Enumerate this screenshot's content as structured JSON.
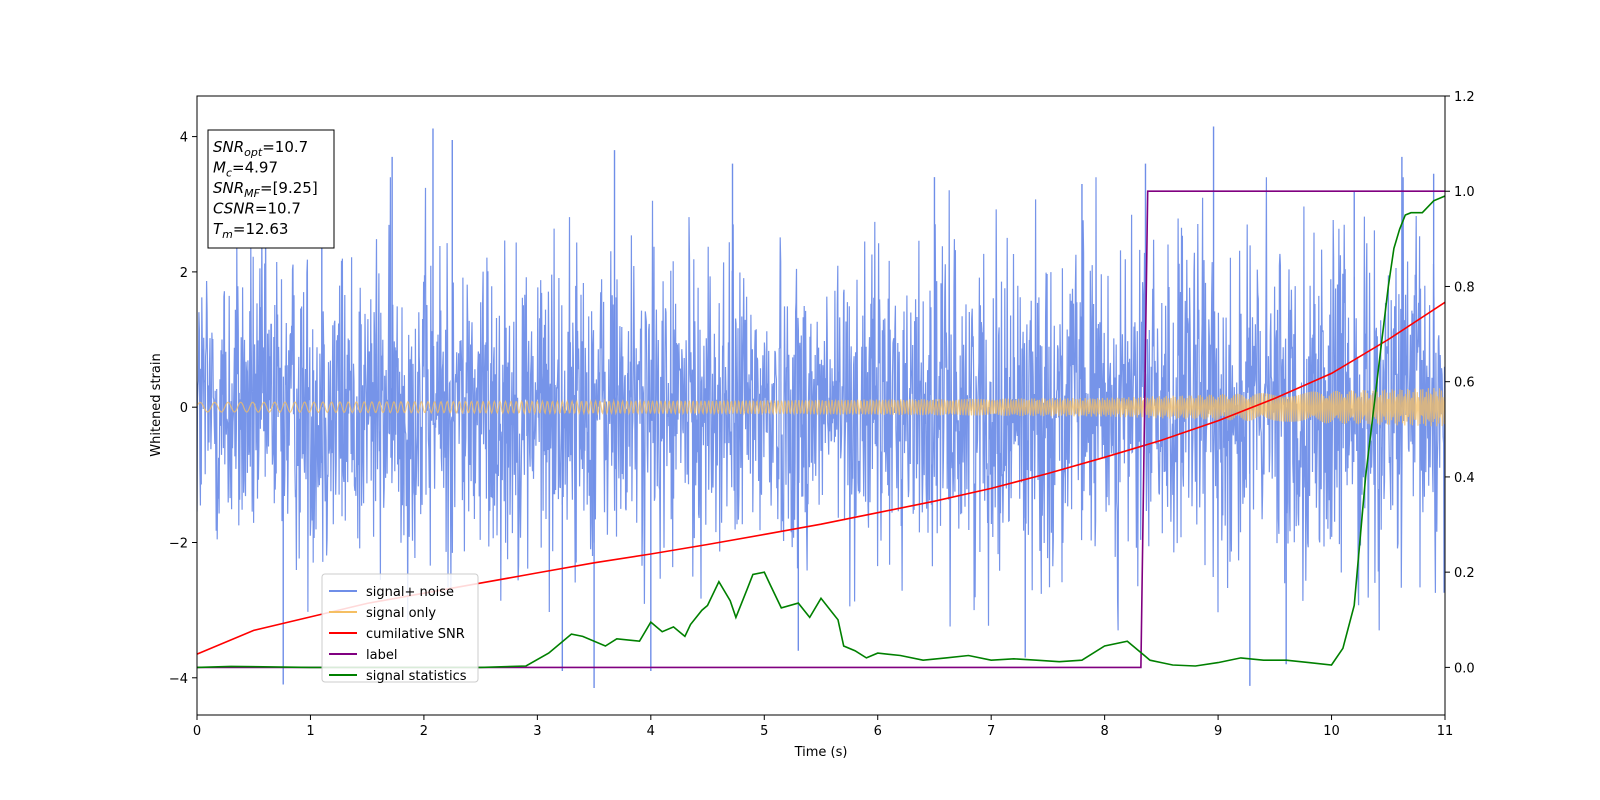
{
  "chart_data": {
    "type": "line",
    "xlabel": "Time (s)",
    "ylabel": "Whitened strain",
    "xlim": [
      0,
      11
    ],
    "ylim_left": [
      -4.55,
      4.6
    ],
    "ylim_right": [
      -0.1,
      1.2
    ],
    "x_ticks": [
      0,
      1,
      2,
      3,
      4,
      5,
      6,
      7,
      8,
      9,
      10,
      11
    ],
    "y_left_ticks": [
      4,
      2,
      0,
      -2,
      -4
    ],
    "y_left_tick_labels": [
      "4",
      "2",
      "0",
      "−2",
      "−4"
    ],
    "y_right_ticks": [
      1.2,
      1.0,
      0.8,
      0.6,
      0.4,
      0.2,
      0.0
    ],
    "y_right_tick_labels": [
      "1.2",
      "1.0",
      "0.8",
      "0.6",
      "0.4",
      "0.2",
      "0.0"
    ],
    "grid": false,
    "legend_position": "lower-left",
    "annotation": {
      "lines": [
        {
          "base": "SNR",
          "sub": "opt",
          "value": "=10.7"
        },
        {
          "base": "M",
          "sub": "c",
          "value": "=4.97"
        },
        {
          "base": "SNR",
          "sub": "MF",
          "value": "=[9.25]"
        },
        {
          "base": "CSNR",
          "sub": "",
          "value": "=10.7"
        },
        {
          "base": "T",
          "sub": "m",
          "value": "=12.63"
        }
      ]
    },
    "series": [
      {
        "name": "signal+ noise",
        "axis": "left",
        "color": "#6f8ee8",
        "kind": "noise",
        "envelope": [
          [
            0,
            2.1
          ],
          [
            2,
            2.2
          ],
          [
            5,
            2.0
          ],
          [
            8,
            2.2
          ],
          [
            11,
            2.4
          ]
        ],
        "spikes": [
          {
            "x": 0.76,
            "y": -4.1
          },
          {
            "x": 2.08,
            "y": 4.12
          },
          {
            "x": 2.25,
            "y": 3.95
          },
          {
            "x": 1.72,
            "y": 3.7
          },
          {
            "x": 3.5,
            "y": -4.15
          },
          {
            "x": 3.22,
            "y": -3.9
          },
          {
            "x": 3.68,
            "y": 3.8
          },
          {
            "x": 4.72,
            "y": 3.6
          },
          {
            "x": 8.36,
            "y": 3.6
          },
          {
            "x": 8.96,
            "y": 4.15
          },
          {
            "x": 9.28,
            "y": -4.12
          },
          {
            "x": 10.62,
            "y": 3.7
          },
          {
            "x": 10.9,
            "y": 3.45
          },
          {
            "x": 4.0,
            "y": -3.9
          },
          {
            "x": 6.5,
            "y": 3.4
          },
          {
            "x": 7.3,
            "y": -3.7
          },
          {
            "x": 7.8,
            "y": 3.3
          },
          {
            "x": 9.6,
            "y": -3.8
          },
          {
            "x": 1.1,
            "y": 3.3
          },
          {
            "x": 5.3,
            "y": -3.6
          },
          {
            "x": 10.2,
            "y": 3.2
          }
        ]
      },
      {
        "name": "signal only",
        "axis": "left",
        "color": "#f5bf63",
        "kind": "chirp",
        "amplitude": [
          [
            0,
            0.07
          ],
          [
            5,
            0.1
          ],
          [
            8,
            0.14
          ],
          [
            11,
            0.29
          ]
        ]
      },
      {
        "name": "cumilative SNR",
        "axis": "left",
        "color": "#ff0000",
        "x": [
          0,
          0.5,
          1,
          1.5,
          2,
          2.5,
          3,
          3.5,
          4,
          4.5,
          5,
          5.5,
          6,
          6.5,
          7,
          7.5,
          8,
          8.5,
          9,
          9.5,
          10,
          10.5,
          11
        ],
        "y": [
          -3.65,
          -3.3,
          -3.1,
          -2.9,
          -2.75,
          -2.6,
          -2.45,
          -2.3,
          -2.17,
          -2.03,
          -1.88,
          -1.73,
          -1.56,
          -1.39,
          -1.2,
          -0.98,
          -0.74,
          -0.49,
          -0.2,
          0.13,
          0.5,
          1.0,
          1.55
        ]
      },
      {
        "name": "label",
        "axis": "right",
        "color": "#800080",
        "x": [
          0,
          8.32,
          8.38,
          11
        ],
        "y": [
          0.0,
          0.0,
          1.0,
          1.0
        ]
      },
      {
        "name": "signal statistics",
        "axis": "right",
        "color": "#008000",
        "x": [
          0,
          0.3,
          1,
          2,
          2.5,
          2.9,
          3.1,
          3.3,
          3.4,
          3.6,
          3.7,
          3.9,
          4.0,
          4.1,
          4.2,
          4.3,
          4.35,
          4.45,
          4.5,
          4.6,
          4.7,
          4.75,
          4.85,
          4.9,
          5.0,
          5.05,
          5.15,
          5.3,
          5.4,
          5.5,
          5.6,
          5.65,
          5.7,
          5.8,
          5.9,
          6.0,
          6.2,
          6.4,
          6.6,
          6.8,
          7.0,
          7.2,
          7.4,
          7.6,
          7.8,
          8.0,
          8.2,
          8.3,
          8.4,
          8.5,
          8.6,
          8.8,
          9.0,
          9.2,
          9.4,
          9.6,
          9.8,
          10.0,
          10.1,
          10.2,
          10.3,
          10.4,
          10.5,
          10.55,
          10.6,
          10.65,
          10.7,
          10.8,
          10.9,
          11.0
        ],
        "y": [
          0.0,
          0.002,
          0.0,
          0.0,
          0.0,
          0.003,
          0.03,
          0.07,
          0.065,
          0.045,
          0.06,
          0.055,
          0.095,
          0.075,
          0.085,
          0.065,
          0.09,
          0.12,
          0.13,
          0.18,
          0.14,
          0.105,
          0.165,
          0.195,
          0.2,
          0.175,
          0.125,
          0.135,
          0.105,
          0.145,
          0.115,
          0.1,
          0.045,
          0.035,
          0.02,
          0.03,
          0.025,
          0.015,
          0.02,
          0.025,
          0.015,
          0.018,
          0.015,
          0.012,
          0.015,
          0.045,
          0.055,
          0.035,
          0.015,
          0.01,
          0.005,
          0.003,
          0.01,
          0.02,
          0.015,
          0.015,
          0.01,
          0.005,
          0.04,
          0.13,
          0.4,
          0.6,
          0.8,
          0.88,
          0.92,
          0.95,
          0.955,
          0.955,
          0.98,
          0.99
        ]
      }
    ]
  }
}
